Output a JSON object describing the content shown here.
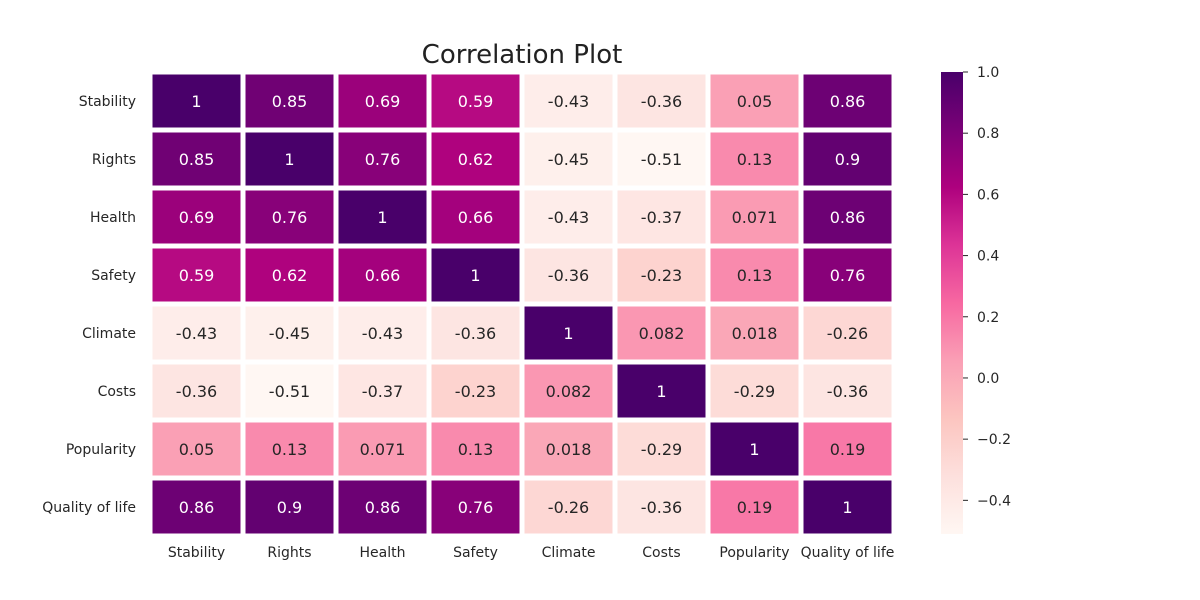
{
  "chart_data": {
    "type": "heatmap",
    "title": "Correlation Plot",
    "xlabel": "",
    "ylabel": "",
    "x_categories": [
      "Stability",
      "Rights",
      "Health",
      "Safety",
      "Climate",
      "Costs",
      "Popularity",
      "Quality of life"
    ],
    "y_categories": [
      "Stability",
      "Rights",
      "Health",
      "Safety",
      "Climate",
      "Costs",
      "Popularity",
      "Quality of life"
    ],
    "values": [
      [
        1,
        0.85,
        0.69,
        0.59,
        -0.43,
        -0.36,
        0.05,
        0.86
      ],
      [
        0.85,
        1,
        0.76,
        0.62,
        -0.45,
        -0.51,
        0.13,
        0.9
      ],
      [
        0.69,
        0.76,
        1,
        0.66,
        -0.43,
        -0.37,
        0.071,
        0.86
      ],
      [
        0.59,
        0.62,
        0.66,
        1,
        -0.36,
        -0.23,
        0.13,
        0.76
      ],
      [
        -0.43,
        -0.45,
        -0.43,
        -0.36,
        1,
        0.082,
        0.018,
        -0.26
      ],
      [
        -0.36,
        -0.51,
        -0.37,
        -0.23,
        0.082,
        1,
        -0.29,
        -0.36
      ],
      [
        0.05,
        0.13,
        0.071,
        0.13,
        0.018,
        -0.29,
        1,
        0.19
      ],
      [
        0.86,
        0.9,
        0.86,
        0.76,
        -0.26,
        -0.36,
        0.19,
        1
      ]
    ],
    "cell_labels": [
      [
        "1",
        "0.85",
        "0.69",
        "0.59",
        "-0.43",
        "-0.36",
        "0.05",
        "0.86"
      ],
      [
        "0.85",
        "1",
        "0.76",
        "0.62",
        "-0.45",
        "-0.51",
        "0.13",
        "0.9"
      ],
      [
        "0.69",
        "0.76",
        "1",
        "0.66",
        "-0.43",
        "-0.37",
        "0.071",
        "0.86"
      ],
      [
        "0.59",
        "0.62",
        "0.66",
        "1",
        "-0.36",
        "-0.23",
        "0.13",
        "0.76"
      ],
      [
        "-0.43",
        "-0.45",
        "-0.43",
        "-0.36",
        "1",
        "0.082",
        "0.018",
        "-0.26"
      ],
      [
        "-0.36",
        "-0.51",
        "-0.37",
        "-0.23",
        "0.082",
        "1",
        "-0.29",
        "-0.36"
      ],
      [
        "0.05",
        "0.13",
        "0.071",
        "0.13",
        "0.018",
        "-0.29",
        "1",
        "0.19"
      ],
      [
        "0.86",
        "0.9",
        "0.86",
        "0.76",
        "-0.26",
        "-0.36",
        "0.19",
        "1"
      ]
    ],
    "colorscale": {
      "name": "RdPu",
      "vmin": -0.51,
      "vmax": 1.0,
      "colors": [
        "#fff7f3",
        "#fde0dd",
        "#fcc5c0",
        "#fa9fb5",
        "#f768a1",
        "#dd3497",
        "#ae017e",
        "#7a0177",
        "#49006a"
      ]
    },
    "colorbar_ticks": [
      {
        "value": 1.0,
        "label": "1.0"
      },
      {
        "value": 0.8,
        "label": "0.8"
      },
      {
        "value": 0.6,
        "label": "0.6"
      },
      {
        "value": 0.4,
        "label": "0.4"
      },
      {
        "value": 0.2,
        "label": "0.2"
      },
      {
        "value": 0.0,
        "label": "0.0"
      },
      {
        "value": -0.2,
        "label": "−0.2"
      },
      {
        "value": -0.4,
        "label": "−0.4"
      }
    ],
    "grid": false,
    "legend": "colorbar-right"
  }
}
